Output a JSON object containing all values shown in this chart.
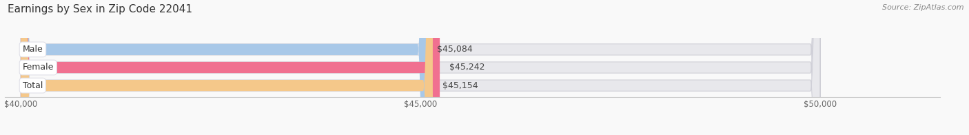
{
  "title": "Earnings by Sex in Zip Code 22041",
  "source": "Source: ZipAtlas.com",
  "categories": [
    "Male",
    "Female",
    "Total"
  ],
  "values": [
    45084,
    45242,
    45154
  ],
  "labels": [
    "$45,084",
    "$45,242",
    "$45,154"
  ],
  "bar_colors": [
    "#a8c8e8",
    "#f07090",
    "#f5c88a"
  ],
  "bar_bg_color": "#e8e8ec",
  "bar_border_color": "#d0d0d8",
  "xlim_min": 40000,
  "xlim_max": 50000,
  "xticks": [
    40000,
    45000,
    50000
  ],
  "xtick_labels": [
    "$40,000",
    "$45,000",
    "$50,000"
  ],
  "background_color": "#f9f9f9",
  "title_fontsize": 11,
  "label_fontsize": 9,
  "tick_fontsize": 8.5,
  "source_fontsize": 8
}
